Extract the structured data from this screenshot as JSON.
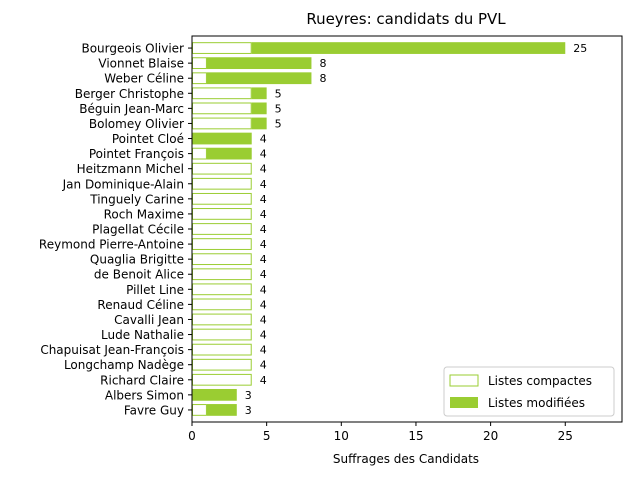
{
  "chart_data": {
    "type": "bar",
    "orientation": "horizontal",
    "stacked": true,
    "title": "Rueyres: candidats du PVL",
    "xlabel": "Suffrages des Candidats",
    "ylabel": "",
    "xlim": [
      0,
      28.8
    ],
    "xticks": [
      0,
      5,
      10,
      15,
      20,
      25
    ],
    "grid": false,
    "legend_position": "lower-right",
    "colors": {
      "modified": "#9acd32",
      "compact_edge": "#9acd32",
      "compact_fill": "#ffffff"
    },
    "categories": [
      "Bourgeois Olivier",
      "Vionnet Blaise",
      "Weber Céline",
      "Berger Christophe",
      "Béguin Jean-Marc",
      "Bolomey Olivier",
      "Pointet Cloé",
      "Pointet François",
      "Heitzmann Michel",
      "Jan Dominique-Alain",
      "Tinguely Carine",
      "Roch Maxime",
      "Plagellat Cécile",
      "Reymond Pierre-Antoine",
      "Quaglia Brigitte",
      "de Benoit Alice",
      "Pillet Line",
      "Renaud Céline",
      "Cavalli Jean",
      "Lude Nathalie",
      "Chapuisat Jean-François",
      "Longchamp Nadège",
      "Richard Claire",
      "Albers Simon",
      "Favre Guy"
    ],
    "series": [
      {
        "name": "Listes compactes",
        "values": [
          4,
          1,
          1,
          4,
          4,
          4,
          0,
          1,
          4,
          4,
          4,
          4,
          4,
          4,
          4,
          4,
          4,
          4,
          4,
          4,
          4,
          4,
          4,
          0,
          1
        ]
      },
      {
        "name": "Listes modifiées",
        "values": [
          21,
          7,
          7,
          1,
          1,
          1,
          4,
          3,
          0,
          0,
          0,
          0,
          0,
          0,
          0,
          0,
          0,
          0,
          0,
          0,
          0,
          0,
          0,
          3,
          2
        ]
      }
    ],
    "totals": [
      "25",
      "8",
      "8",
      "5",
      "5",
      "5",
      "4",
      "4",
      "4",
      "4",
      "4",
      "4",
      "4",
      "4",
      "4",
      "4",
      "4",
      "4",
      "4",
      "4",
      "4",
      "4",
      "4",
      "3",
      "3"
    ]
  }
}
